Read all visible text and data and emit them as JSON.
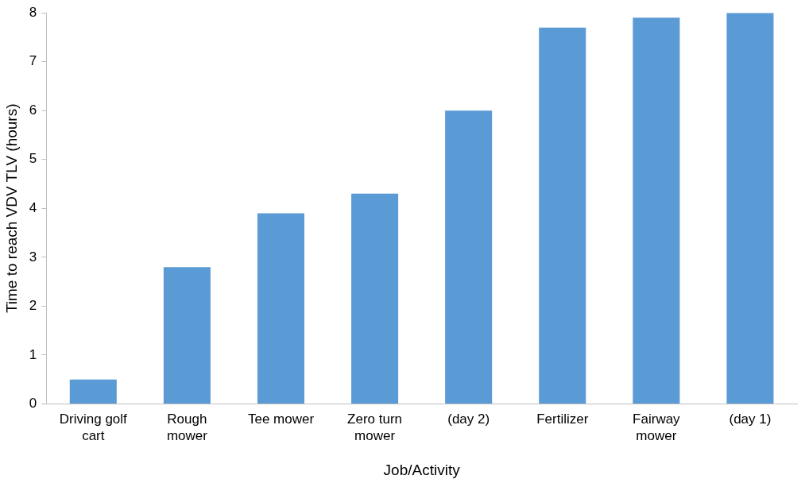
{
  "chart_data": {
    "type": "bar",
    "xlabel": "Job/Activity",
    "ylabel": "Time to reach VDV TLV (hours)",
    "categories": [
      "Driving golf cart",
      "Rough mower",
      "Tee mower",
      "Zero turn mower",
      "(day 2)",
      "Fertilizer",
      "Fairway mower",
      "(day 1)"
    ],
    "values": [
      0.5,
      2.8,
      3.9,
      4.3,
      6.0,
      7.7,
      7.9,
      8.0
    ],
    "color": "#5b9bd5",
    "ylim": [
      0,
      8
    ],
    "yticks": [
      0,
      1,
      2,
      3,
      4,
      5,
      6,
      7,
      8
    ],
    "grid": false,
    "legend": false
  }
}
